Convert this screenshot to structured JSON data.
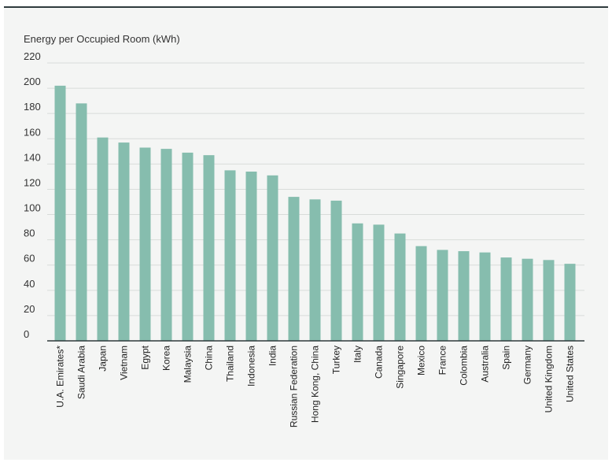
{
  "chart_data": {
    "type": "bar",
    "ylabel": "Energy per Occupied Room (kWh)",
    "ylim": [
      0,
      220
    ],
    "yticks": [
      0,
      20,
      40,
      60,
      80,
      100,
      120,
      140,
      160,
      180,
      200,
      220
    ],
    "grid": true,
    "bar_color": "#86bdae",
    "categories": [
      "U.A. Emirates*",
      "Saudi Arabia",
      "Japan",
      "Vietnam",
      "Egypt",
      "Korea",
      "Malaysia",
      "China",
      "Thailand",
      "Indonesia",
      "India",
      "Russian Federation",
      "Hong Kong, China",
      "Turkey",
      "Italy",
      "Canada",
      "Singapore",
      "Mexico",
      "France",
      "Colombia",
      "Australia",
      "Spain",
      "Germany",
      "United Kingdom",
      "United States"
    ],
    "values": [
      202,
      188,
      161,
      157,
      153,
      152,
      149,
      147,
      135,
      134,
      131,
      114,
      112,
      111,
      93,
      92,
      85,
      75,
      72,
      71,
      70,
      66,
      65,
      64,
      61
    ]
  }
}
